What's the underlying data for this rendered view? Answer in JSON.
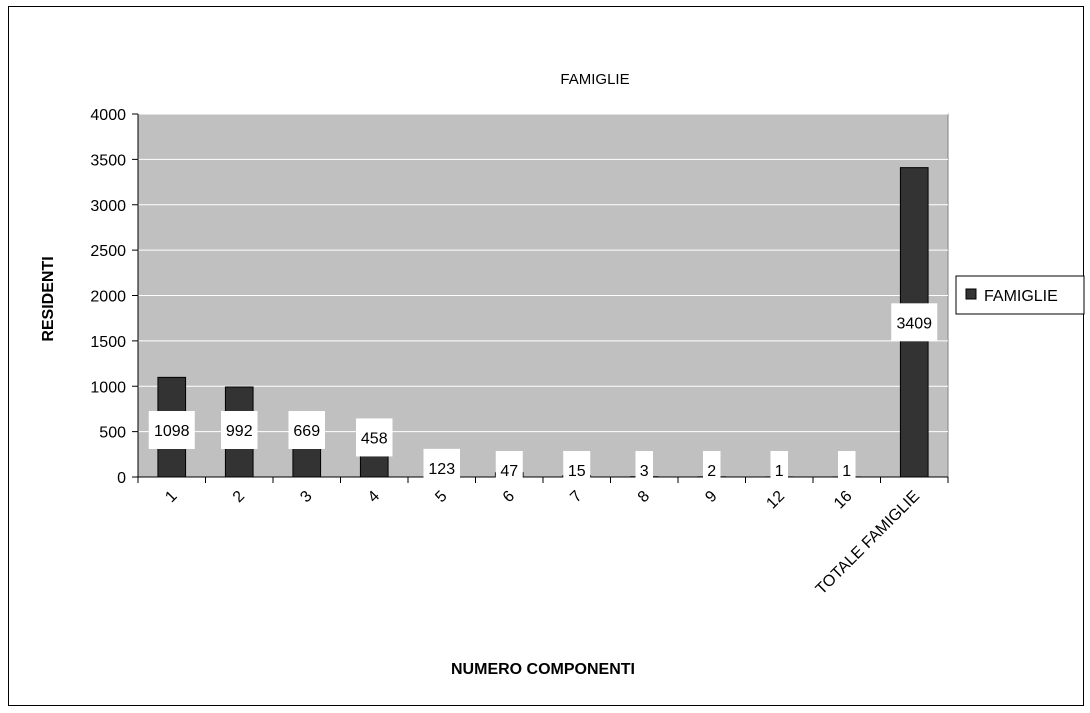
{
  "chart_data": {
    "type": "bar",
    "title": "FAMIGLIE",
    "xlabel": "NUMERO COMPONENTI",
    "ylabel": "RESIDENTI",
    "categories": [
      "1",
      "2",
      "3",
      "4",
      "5",
      "6",
      "7",
      "8",
      "9",
      "12",
      "16",
      "TOTALE FAMIGLIE"
    ],
    "series": [
      {
        "name": "FAMIGLIE",
        "values": [
          1098,
          992,
          669,
          458,
          123,
          47,
          15,
          3,
          2,
          1,
          1,
          3409
        ],
        "color": "#333333"
      }
    ],
    "ylim": [
      0,
      4000
    ],
    "yticks": [
      0,
      500,
      1000,
      1500,
      2000,
      2500,
      3000,
      3500,
      4000
    ],
    "plot_background": "#c0c0c0",
    "grid": true,
    "legend_position": "right"
  }
}
